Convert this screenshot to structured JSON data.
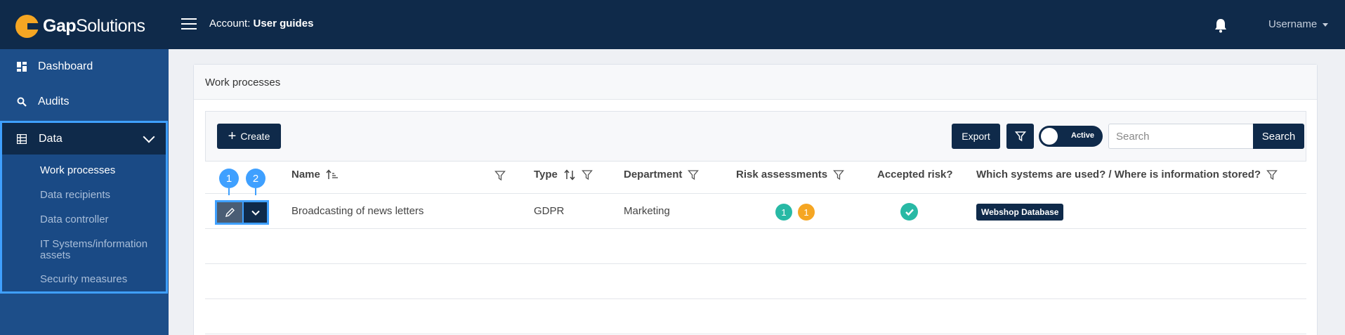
{
  "header": {
    "logo_bold": "Gap",
    "logo_light": "Solutions",
    "account_label": "Account:",
    "account_name": "User guides",
    "username": "Username"
  },
  "sidebar": {
    "items": [
      {
        "label": "Dashboard",
        "icon": "dashboard-icon"
      },
      {
        "label": "Audits",
        "icon": "search-icon"
      },
      {
        "label": "Data",
        "icon": "table-icon"
      }
    ],
    "sub_items": [
      {
        "label": "Work processes",
        "active": true
      },
      {
        "label": "Data recipients"
      },
      {
        "label": "Data controller"
      },
      {
        "label": "IT Systems/information assets"
      },
      {
        "label": "Security measures"
      }
    ]
  },
  "panel": {
    "title": "Work processes"
  },
  "toolbar": {
    "create_label": "Create",
    "export_label": "Export",
    "toggle_label": "Active",
    "search_placeholder": "Search",
    "search_button": "Search"
  },
  "table": {
    "columns": [
      "Name",
      "Type",
      "Department",
      "Risk assessments",
      "Accepted risk?",
      "Which systems are used? / Where is information stored?"
    ],
    "rows": [
      {
        "name": "Broadcasting of news letters",
        "type": "GDPR",
        "department": "Marketing",
        "risk_green": "1",
        "risk_orange": "1",
        "system_tag": "Webshop Database"
      }
    ]
  },
  "markers": [
    "1",
    "2"
  ],
  "colors": {
    "navy": "#0f2a4a",
    "sidebar": "#1d4e89",
    "highlight": "#3fa0ff",
    "teal": "#28b9a5",
    "orange": "#f5a623"
  }
}
